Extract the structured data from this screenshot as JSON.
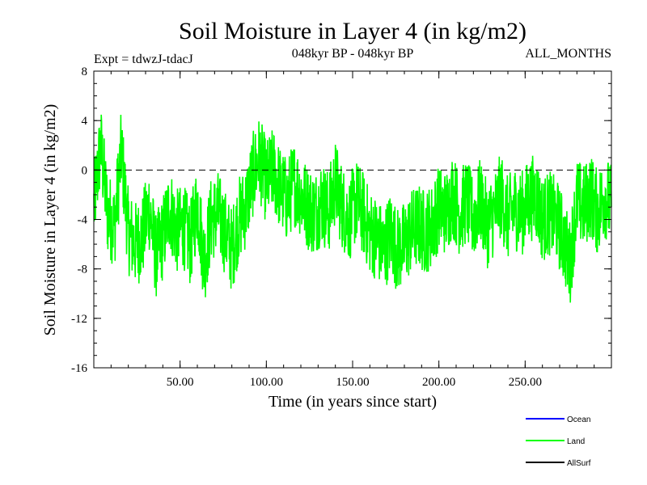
{
  "chart_data": {
    "type": "line",
    "title": "Soil Moisture in Layer 4 (in kg/m2)",
    "subtitle_left": "Expt = tdwzJ-tdacJ",
    "subtitle_center": "048kyr BP - 048kyr BP",
    "subtitle_right": "ALL_MONTHS",
    "xlabel": "Time (in years since start)",
    "ylabel": "Soil Moisture in Layer 4 (in kg/m2)",
    "xlim": [
      0,
      300
    ],
    "ylim": [
      -16,
      8
    ],
    "x_ticks": [
      50,
      100,
      150,
      200,
      250
    ],
    "x_tick_labels": [
      "50.00",
      "100.00",
      "150.00",
      "200.00",
      "250.00"
    ],
    "y_ticks": [
      8,
      4,
      0,
      -4,
      -8,
      -12,
      -16
    ],
    "y_tick_labels": [
      "8",
      "4",
      "0",
      "-4",
      "-8",
      "-12",
      "-16"
    ],
    "zero_line": true,
    "legend": [
      {
        "name": "Ocean",
        "color": "#0000ff"
      },
      {
        "name": "Land",
        "color": "#00ff00"
      },
      {
        "name": "AllSurf",
        "color": "#000000"
      }
    ],
    "series": [
      {
        "name": "Land",
        "color": "#00ff00",
        "points": [
          [
            0,
            -3.0
          ],
          [
            4,
            2.0
          ],
          [
            8,
            -3.5
          ],
          [
            12,
            -4.5
          ],
          [
            16,
            1.5
          ],
          [
            20,
            -5.0
          ],
          [
            24,
            -6.0
          ],
          [
            28,
            -5.5
          ],
          [
            32,
            -3.0
          ],
          [
            36,
            -7.0
          ],
          [
            40,
            -5.5
          ],
          [
            44,
            -3.0
          ],
          [
            48,
            -5.0
          ],
          [
            52,
            -4.5
          ],
          [
            56,
            -6.0
          ],
          [
            60,
            -2.5
          ],
          [
            64,
            -7.5
          ],
          [
            68,
            -4.0
          ],
          [
            72,
            -3.5
          ],
          [
            76,
            -5.0
          ],
          [
            80,
            -6.5
          ],
          [
            84,
            -4.0
          ],
          [
            88,
            -3.0
          ],
          [
            92,
            -0.5
          ],
          [
            96,
            1.0
          ],
          [
            100,
            -1.0
          ],
          [
            104,
            0.0
          ],
          [
            108,
            -1.5
          ],
          [
            112,
            -2.5
          ],
          [
            116,
            -1.0
          ],
          [
            120,
            -2.0
          ],
          [
            124,
            -3.0
          ],
          [
            128,
            -3.5
          ],
          [
            132,
            -2.5
          ],
          [
            136,
            -3.5
          ],
          [
            140,
            -1.0
          ],
          [
            144,
            -3.0
          ],
          [
            148,
            -4.0
          ],
          [
            152,
            -2.5
          ],
          [
            156,
            -3.5
          ],
          [
            160,
            -5.0
          ],
          [
            164,
            -5.5
          ],
          [
            168,
            -6.5
          ],
          [
            172,
            -5.0
          ],
          [
            176,
            -6.5
          ],
          [
            180,
            -6.0
          ],
          [
            184,
            -5.0
          ],
          [
            188,
            -4.5
          ],
          [
            192,
            -5.0
          ],
          [
            196,
            -4.5
          ],
          [
            200,
            -3.0
          ],
          [
            204,
            -3.5
          ],
          [
            208,
            -2.0
          ],
          [
            212,
            -3.5
          ],
          [
            216,
            -2.5
          ],
          [
            220,
            -4.0
          ],
          [
            224,
            -2.5
          ],
          [
            228,
            -4.5
          ],
          [
            232,
            -3.5
          ],
          [
            236,
            -2.0
          ],
          [
            240,
            -4.0
          ],
          [
            244,
            -3.0
          ],
          [
            248,
            -3.5
          ],
          [
            252,
            -2.5
          ],
          [
            256,
            -2.0
          ],
          [
            260,
            -4.0
          ],
          [
            264,
            -3.5
          ],
          [
            268,
            -4.0
          ],
          [
            272,
            -5.5
          ],
          [
            276,
            -7.5
          ],
          [
            280,
            -2.5
          ],
          [
            284,
            -3.0
          ],
          [
            288,
            -2.0
          ],
          [
            292,
            -3.5
          ],
          [
            296,
            -2.0
          ],
          [
            300,
            -3.0
          ]
        ]
      }
    ]
  }
}
